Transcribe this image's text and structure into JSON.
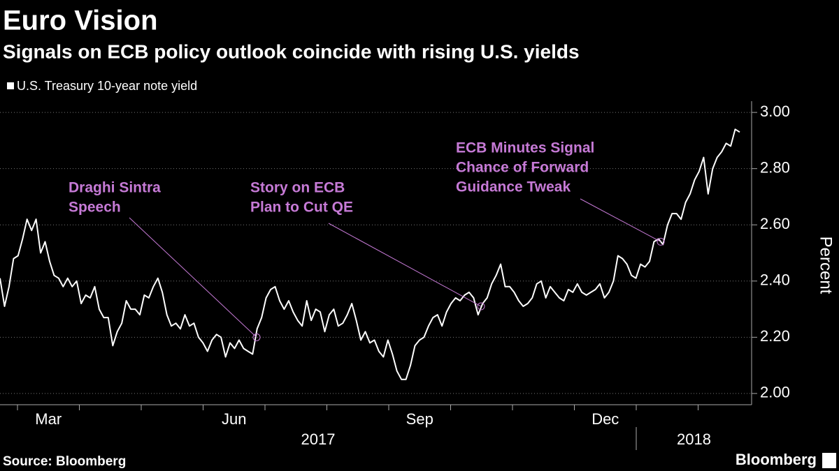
{
  "chart_data": {
    "type": "line",
    "title": "Euro Vision",
    "subtitle": "Signals on ECB policy outlook coincide with rising U.S. yields",
    "y_axis_label": "Percent",
    "source": "Source: Bloomberg",
    "brand": "Bloomberg",
    "grid": true,
    "legend": "top-left",
    "series": [
      {
        "name": "U.S. Treasury 10-year note yield",
        "color": "#ffffff",
        "values": [
          2.41,
          2.31,
          2.38,
          2.48,
          2.49,
          2.55,
          2.62,
          2.58,
          2.62,
          2.5,
          2.54,
          2.47,
          2.42,
          2.41,
          2.38,
          2.41,
          2.38,
          2.4,
          2.32,
          2.35,
          2.34,
          2.38,
          2.3,
          2.27,
          2.27,
          2.17,
          2.22,
          2.25,
          2.33,
          2.3,
          2.3,
          2.28,
          2.35,
          2.34,
          2.38,
          2.41,
          2.36,
          2.28,
          2.24,
          2.25,
          2.23,
          2.28,
          2.24,
          2.25,
          2.2,
          2.18,
          2.15,
          2.19,
          2.21,
          2.2,
          2.13,
          2.18,
          2.16,
          2.19,
          2.16,
          2.15,
          2.14,
          2.23,
          2.27,
          2.34,
          2.37,
          2.38,
          2.33,
          2.3,
          2.33,
          2.29,
          2.26,
          2.24,
          2.33,
          2.26,
          2.3,
          2.29,
          2.22,
          2.28,
          2.3,
          2.24,
          2.25,
          2.28,
          2.32,
          2.26,
          2.19,
          2.22,
          2.18,
          2.19,
          2.15,
          2.13,
          2.19,
          2.14,
          2.08,
          2.05,
          2.05,
          2.1,
          2.17,
          2.19,
          2.2,
          2.24,
          2.27,
          2.28,
          2.24,
          2.29,
          2.32,
          2.34,
          2.33,
          2.35,
          2.36,
          2.34,
          2.28,
          2.32,
          2.34,
          2.39,
          2.42,
          2.46,
          2.38,
          2.38,
          2.36,
          2.33,
          2.31,
          2.32,
          2.34,
          2.39,
          2.4,
          2.34,
          2.38,
          2.36,
          2.34,
          2.33,
          2.37,
          2.36,
          2.39,
          2.36,
          2.35,
          2.36,
          2.37,
          2.39,
          2.34,
          2.36,
          2.4,
          2.49,
          2.48,
          2.46,
          2.42,
          2.41,
          2.46,
          2.45,
          2.47,
          2.54,
          2.55,
          2.53,
          2.6,
          2.64,
          2.64,
          2.62,
          2.68,
          2.71,
          2.76,
          2.79,
          2.84,
          2.71,
          2.8,
          2.84,
          2.86,
          2.89,
          2.88,
          2.94,
          2.93
        ]
      }
    ],
    "xlim": [
      "2017-02",
      "2018-02"
    ],
    "xticks": [
      {
        "value": "2017-03",
        "label": "Mar"
      },
      {
        "value": "2017-06",
        "label": "Jun"
      },
      {
        "value": "2017-09",
        "label": "Sep"
      },
      {
        "value": "2017-12",
        "label": "Dec"
      }
    ],
    "year_labels": [
      "2017",
      "2018"
    ],
    "ylim": [
      1.96,
      3.04
    ],
    "yticks": [
      {
        "value": 2,
        "label": "2.00"
      },
      {
        "value": 2.2,
        "label": "2.20"
      },
      {
        "value": 2.4,
        "label": "2.40"
      },
      {
        "value": 2.6,
        "label": "2.60"
      },
      {
        "value": 2.8,
        "label": "2.80"
      },
      {
        "value": 3,
        "label": "3.00"
      }
    ],
    "annotations": [
      {
        "text": [
          "Draghi Sintra",
          "Speech"
        ],
        "y": 2.2
      },
      {
        "text": [
          "Story on ECB",
          "Plan to Cut QE"
        ],
        "y": 2.31
      },
      {
        "text": [
          "ECB Minutes Signal",
          "Chance of Forward",
          "Guidance Tweak"
        ],
        "y": 2.54
      }
    ]
  }
}
